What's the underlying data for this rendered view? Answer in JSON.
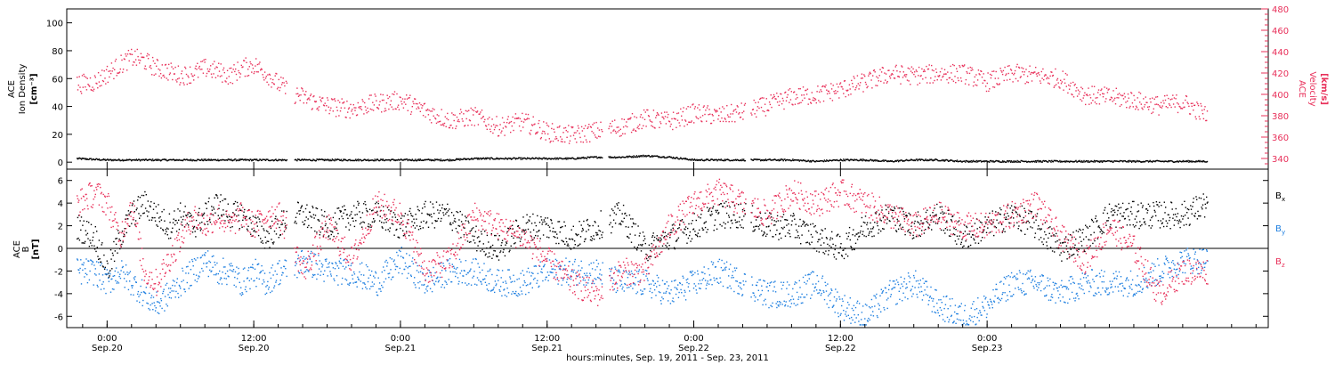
{
  "colors": {
    "density": "#000000",
    "velocity": "#e8305a",
    "bx": "#000000",
    "by": "#1e7fe0",
    "bz": "#e8305a"
  },
  "chart_data": [
    {
      "type": "scatter",
      "panel": "top",
      "ylabel_left": [
        "ACE",
        "Ion Density",
        "[cm⁻³]"
      ],
      "ylabel_right": [
        "ACE",
        "Velocity",
        "[km/s]"
      ],
      "ylim_left": [
        -5,
        110
      ],
      "ylim_right": [
        330,
        480
      ],
      "yticks_left": [
        "0",
        "20",
        "40",
        "60",
        "80",
        "100"
      ],
      "yticks_right": [
        "340",
        "360",
        "380",
        "400",
        "420",
        "440",
        "460",
        "480"
      ],
      "series": [
        {
          "axis": "left",
          "color": "#000000",
          "x": [
            -2.5,
            0,
            2,
            4,
            6,
            8,
            10,
            12,
            14,
            16,
            18,
            20,
            22,
            24,
            26,
            28,
            30,
            32,
            34,
            36,
            38,
            40,
            42,
            44,
            46,
            48,
            50,
            52,
            54,
            56,
            58,
            60,
            62,
            64,
            66,
            68,
            70,
            72,
            74,
            76,
            78,
            80,
            82,
            84,
            86,
            88,
            90
          ],
          "y": [
            3,
            2,
            2,
            2,
            2,
            2,
            2,
            2,
            2,
            2,
            2,
            2,
            2,
            2,
            2,
            2,
            3,
            3,
            3,
            3,
            3,
            4,
            4,
            5,
            4,
            2,
            2,
            2,
            2,
            2,
            1,
            2,
            2,
            1,
            2,
            2,
            1,
            1,
            1,
            1,
            1,
            1,
            1,
            1,
            1,
            1,
            1
          ]
        },
        {
          "axis": "right",
          "color": "#e8305a",
          "x": [
            -2.5,
            -1,
            0,
            1,
            2,
            3,
            4,
            5,
            6,
            7,
            8,
            9,
            10,
            11,
            12,
            13,
            14,
            15,
            16,
            17,
            18,
            19,
            20,
            21,
            22,
            24,
            26,
            28,
            30,
            32,
            34,
            36,
            38,
            40,
            42,
            44,
            46,
            48,
            50,
            52,
            54,
            56,
            58,
            60,
            62,
            64,
            66,
            68,
            70,
            72,
            74,
            76,
            78,
            80,
            82,
            84,
            86,
            88,
            90
          ],
          "y": [
            410,
            412,
            420,
            428,
            435,
            432,
            425,
            422,
            418,
            420,
            425,
            422,
            418,
            425,
            428,
            420,
            410,
            402,
            398,
            393,
            390,
            388,
            387,
            390,
            392,
            395,
            385,
            376,
            380,
            370,
            375,
            365,
            362,
            366,
            370,
            378,
            375,
            383,
            380,
            384,
            390,
            398,
            400,
            405,
            412,
            420,
            418,
            420,
            420,
            412,
            420,
            418,
            415,
            400,
            398,
            395,
            390,
            393,
            380
          ]
        }
      ]
    },
    {
      "type": "scatter",
      "panel": "bottom",
      "ylabel": [
        "ACE",
        "B",
        "[nT]"
      ],
      "ylim": [
        -7,
        7
      ],
      "yticks": [
        "-6",
        "-4",
        "-2",
        "0",
        "2",
        "4",
        "6"
      ],
      "legend": [
        "B",
        "B",
        "B"
      ],
      "legend_sub": [
        "x",
        "y",
        "z"
      ],
      "xticks": [
        "0:00",
        "12:00",
        "0:00",
        "12:00",
        "0:00",
        "12:00",
        "0:00"
      ],
      "xticks_sub": [
        "Sep.20",
        "Sep.20",
        "Sep.21",
        "Sep.21",
        "Sep.22",
        "Sep.22",
        "Sep.23"
      ],
      "xlabel": "hours:minutes, Sep. 19, 2011 - Sep. 23, 2011",
      "xlim": [
        -3.3,
        95
      ],
      "series": [
        {
          "name": "Bx",
          "color": "#000000",
          "x": [
            -2.5,
            -1,
            0,
            1,
            2,
            3,
            4,
            5,
            6,
            7,
            8,
            9,
            10,
            11,
            12,
            13,
            14,
            15,
            16,
            18,
            20,
            22,
            24,
            26,
            28,
            30,
            32,
            34,
            36,
            38,
            40,
            42,
            44,
            46,
            48,
            50,
            52,
            54,
            56,
            58,
            60,
            62,
            64,
            66,
            68,
            70,
            72,
            74,
            76,
            78,
            80,
            82,
            84,
            86,
            88,
            90
          ],
          "y": [
            2,
            1,
            -2,
            1,
            3,
            4,
            3,
            2,
            3,
            2,
            3,
            4,
            3,
            3,
            2,
            1,
            2,
            3,
            3,
            2,
            3,
            3,
            2,
            3,
            3,
            1,
            0,
            2,
            2,
            1,
            2,
            3,
            0,
            1,
            2,
            3,
            3,
            2,
            2,
            1,
            0,
            2,
            3,
            2,
            3,
            1,
            2,
            3,
            2,
            0,
            1,
            3,
            3,
            3,
            3,
            4
          ]
        },
        {
          "name": "By",
          "color": "#1e7fe0",
          "x": [
            -2.5,
            -1,
            0,
            1,
            2,
            3,
            4,
            5,
            6,
            7,
            8,
            9,
            10,
            11,
            12,
            13,
            14,
            15,
            16,
            18,
            20,
            22,
            24,
            26,
            28,
            30,
            32,
            34,
            36,
            38,
            40,
            42,
            44,
            46,
            48,
            50,
            52,
            54,
            56,
            58,
            60,
            62,
            64,
            66,
            68,
            70,
            72,
            74,
            76,
            78,
            80,
            82,
            84,
            86,
            88,
            90
          ],
          "y": [
            -2,
            -2,
            -3,
            -2,
            -3,
            -4,
            -5,
            -4,
            -3,
            -2,
            -1,
            -2,
            -2,
            -3,
            -2,
            -3,
            -2,
            -2,
            -1,
            -2,
            -2,
            -3,
            -1,
            -3,
            -2,
            -2,
            -3,
            -3,
            -2,
            -2,
            -2,
            -3,
            -3,
            -4,
            -3,
            -2,
            -3,
            -4,
            -4,
            -3,
            -5,
            -6,
            -4,
            -3,
            -5,
            -6,
            -5,
            -3,
            -3,
            -4,
            -3,
            -3,
            -3,
            -2,
            -1,
            -1
          ]
        },
        {
          "name": "Bz",
          "color": "#e8305a",
          "x": [
            -2.5,
            -1,
            0,
            1,
            2,
            3,
            4,
            5,
            6,
            7,
            8,
            9,
            10,
            11,
            12,
            13,
            14,
            15,
            16,
            18,
            20,
            22,
            24,
            26,
            28,
            30,
            32,
            34,
            36,
            38,
            40,
            42,
            44,
            46,
            48,
            50,
            52,
            54,
            56,
            58,
            60,
            62,
            64,
            66,
            68,
            70,
            72,
            74,
            76,
            78,
            80,
            82,
            84,
            86,
            88,
            90
          ],
          "y": [
            4,
            5,
            4,
            1,
            4,
            -2,
            -3,
            -1,
            1,
            3,
            2,
            3,
            2,
            3,
            2,
            3,
            3,
            1,
            -2,
            2,
            -1,
            4,
            3,
            -2,
            -1,
            3,
            2,
            1,
            -1,
            -3,
            -4,
            -2,
            -2,
            2,
            4,
            5,
            4,
            3,
            5,
            4,
            5,
            4,
            3,
            2,
            3,
            2,
            2,
            3,
            4,
            1,
            -1,
            2,
            0,
            -4,
            -2,
            -2
          ]
        }
      ]
    }
  ]
}
